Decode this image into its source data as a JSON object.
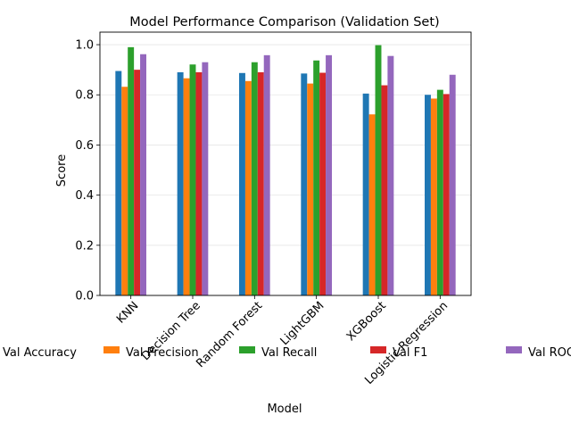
{
  "chart_data": {
    "type": "bar",
    "title": "Model Performance Comparison (Validation Set)",
    "xlabel": "Model",
    "ylabel": "Score",
    "ylim": [
      0,
      1.05
    ],
    "yticks": [
      "0.0",
      "0.2",
      "0.4",
      "0.6",
      "0.8",
      "1.0"
    ],
    "ytick_values": [
      0.0,
      0.2,
      0.4,
      0.6,
      0.8,
      1.0
    ],
    "grid": "horizontal",
    "legend_placement": "bottom",
    "categories": [
      "KNN",
      "Decision Tree",
      "Random Forest",
      "LightGBM",
      "XGBoost",
      "Logistic Regression"
    ],
    "series": [
      {
        "name": "Val Accuracy",
        "color": "#1f77b4",
        "values": [
          0.895,
          0.89,
          0.887,
          0.885,
          0.805,
          0.8
        ]
      },
      {
        "name": "Val Precision",
        "color": "#ff7f0e",
        "values": [
          0.832,
          0.866,
          0.855,
          0.845,
          0.722,
          0.785
        ]
      },
      {
        "name": "Val Recall",
        "color": "#2ca02c",
        "values": [
          0.99,
          0.921,
          0.93,
          0.937,
          0.998,
          0.82
        ]
      },
      {
        "name": "Val F1",
        "color": "#d62728",
        "values": [
          0.9,
          0.89,
          0.89,
          0.888,
          0.838,
          0.803
        ]
      },
      {
        "name": "Val ROC AUC",
        "color": "#9467bd",
        "values": [
          0.962,
          0.93,
          0.958,
          0.958,
          0.955,
          0.88
        ]
      }
    ]
  }
}
